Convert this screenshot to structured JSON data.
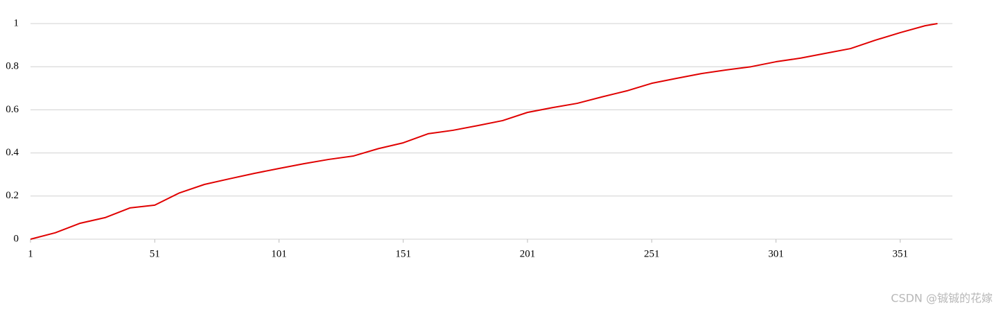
{
  "chart_data": {
    "type": "line",
    "x": [
      1,
      11,
      21,
      31,
      41,
      51,
      61,
      71,
      81,
      91,
      101,
      111,
      121,
      131,
      141,
      151,
      161,
      171,
      181,
      191,
      201,
      211,
      221,
      231,
      241,
      251,
      261,
      271,
      281,
      291,
      301,
      311,
      321,
      331,
      341,
      351,
      361,
      366
    ],
    "series": [
      {
        "color": "#e00000",
        "values": [
          0,
          0.03,
          0.074,
          0.1,
          0.145,
          0.158,
          0.215,
          0.254,
          0.28,
          0.305,
          0.328,
          0.35,
          0.37,
          0.386,
          0.42,
          0.447,
          0.489,
          0.505,
          0.527,
          0.55,
          0.588,
          0.61,
          0.63,
          0.66,
          0.688,
          0.723,
          0.746,
          0.768,
          0.785,
          0.8,
          0.823,
          0.84,
          0.862,
          0.884,
          0.923,
          0.958,
          0.99,
          1
        ]
      }
    ],
    "xlim": [
      1,
      372
    ],
    "xticks": [
      1,
      51,
      101,
      151,
      201,
      251,
      301,
      351
    ],
    "ylim": [
      0,
      1
    ],
    "yticks": [
      0,
      0.2,
      0.4,
      0.6,
      0.8,
      1
    ],
    "grid": true
  },
  "watermark": "CSDN @铖铖的花嫁"
}
